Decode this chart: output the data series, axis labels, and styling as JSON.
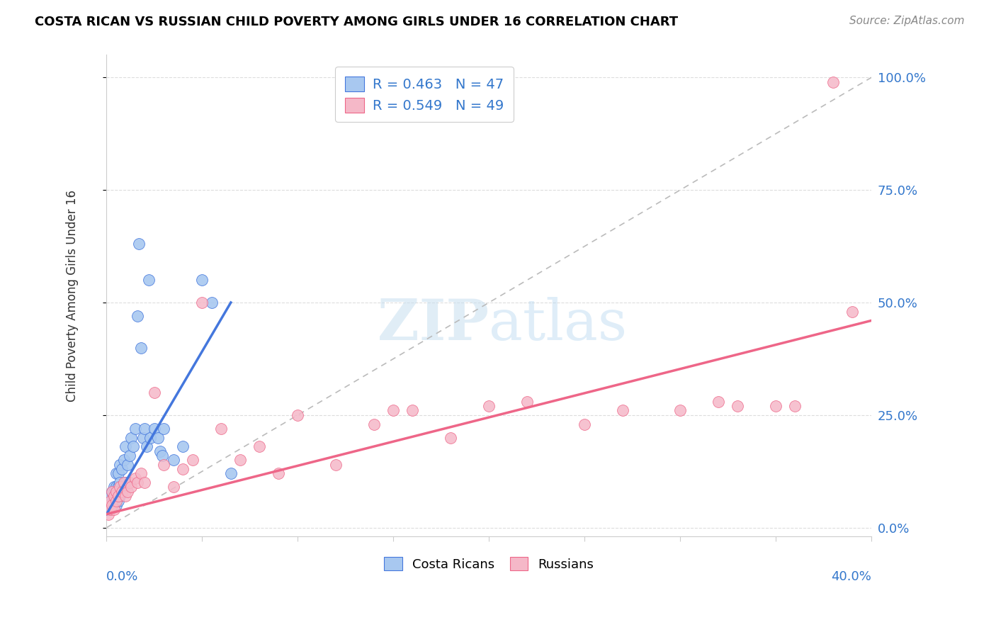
{
  "title": "COSTA RICAN VS RUSSIAN CHILD POVERTY AMONG GIRLS UNDER 16 CORRELATION CHART",
  "source": "Source: ZipAtlas.com",
  "ylabel": "Child Poverty Among Girls Under 16",
  "ylabel_ticks": [
    "0.0%",
    "25.0%",
    "50.0%",
    "75.0%",
    "100.0%"
  ],
  "ylabel_vals": [
    0.0,
    0.25,
    0.5,
    0.75,
    1.0
  ],
  "xlim": [
    0.0,
    0.4
  ],
  "ylim": [
    -0.02,
    1.05
  ],
  "legend_blue_label": "R = 0.463   N = 47",
  "legend_pink_label": "R = 0.549   N = 49",
  "costa_ricans_label": "Costa Ricans",
  "russians_label": "Russians",
  "blue_color": "#A8C8F0",
  "pink_color": "#F5B8C8",
  "blue_line_color": "#4477DD",
  "pink_line_color": "#EE6688",
  "diag_color": "#BBBBBB",
  "watermark_color": "#C8DFF0",
  "grid_color": "#DDDDDD",
  "costa_ricans_x": [
    0.001,
    0.001,
    0.002,
    0.002,
    0.003,
    0.003,
    0.004,
    0.004,
    0.005,
    0.005,
    0.005,
    0.005,
    0.006,
    0.006,
    0.006,
    0.007,
    0.007,
    0.007,
    0.008,
    0.008,
    0.009,
    0.009,
    0.01,
    0.01,
    0.011,
    0.012,
    0.013,
    0.014,
    0.015,
    0.016,
    0.017,
    0.018,
    0.019,
    0.02,
    0.021,
    0.022,
    0.023,
    0.025,
    0.027,
    0.028,
    0.029,
    0.03,
    0.035,
    0.04,
    0.05,
    0.055,
    0.065
  ],
  "costa_ricans_y": [
    0.04,
    0.06,
    0.05,
    0.07,
    0.05,
    0.08,
    0.06,
    0.09,
    0.05,
    0.07,
    0.09,
    0.12,
    0.06,
    0.09,
    0.12,
    0.07,
    0.1,
    0.14,
    0.08,
    0.13,
    0.09,
    0.15,
    0.1,
    0.18,
    0.14,
    0.16,
    0.2,
    0.18,
    0.22,
    0.47,
    0.63,
    0.4,
    0.2,
    0.22,
    0.18,
    0.55,
    0.2,
    0.22,
    0.2,
    0.17,
    0.16,
    0.22,
    0.15,
    0.18,
    0.55,
    0.5,
    0.12
  ],
  "russians_x": [
    0.001,
    0.001,
    0.002,
    0.002,
    0.003,
    0.003,
    0.004,
    0.004,
    0.005,
    0.005,
    0.006,
    0.007,
    0.008,
    0.009,
    0.01,
    0.011,
    0.012,
    0.013,
    0.015,
    0.016,
    0.018,
    0.02,
    0.025,
    0.03,
    0.035,
    0.04,
    0.045,
    0.05,
    0.06,
    0.07,
    0.08,
    0.09,
    0.1,
    0.12,
    0.14,
    0.15,
    0.16,
    0.18,
    0.2,
    0.22,
    0.25,
    0.27,
    0.3,
    0.32,
    0.33,
    0.35,
    0.36,
    0.38,
    0.39
  ],
  "russians_y": [
    0.03,
    0.05,
    0.04,
    0.06,
    0.05,
    0.08,
    0.04,
    0.07,
    0.06,
    0.08,
    0.07,
    0.09,
    0.08,
    0.1,
    0.07,
    0.08,
    0.1,
    0.09,
    0.11,
    0.1,
    0.12,
    0.1,
    0.3,
    0.14,
    0.09,
    0.13,
    0.15,
    0.5,
    0.22,
    0.15,
    0.18,
    0.12,
    0.25,
    0.14,
    0.23,
    0.26,
    0.26,
    0.2,
    0.27,
    0.28,
    0.23,
    0.26,
    0.26,
    0.28,
    0.27,
    0.27,
    0.27,
    0.99,
    0.48
  ],
  "blue_trend_x": [
    0.0,
    0.065
  ],
  "blue_trend_y": [
    0.03,
    0.5
  ],
  "pink_trend_x": [
    0.0,
    0.4
  ],
  "pink_trend_y": [
    0.03,
    0.46
  ]
}
